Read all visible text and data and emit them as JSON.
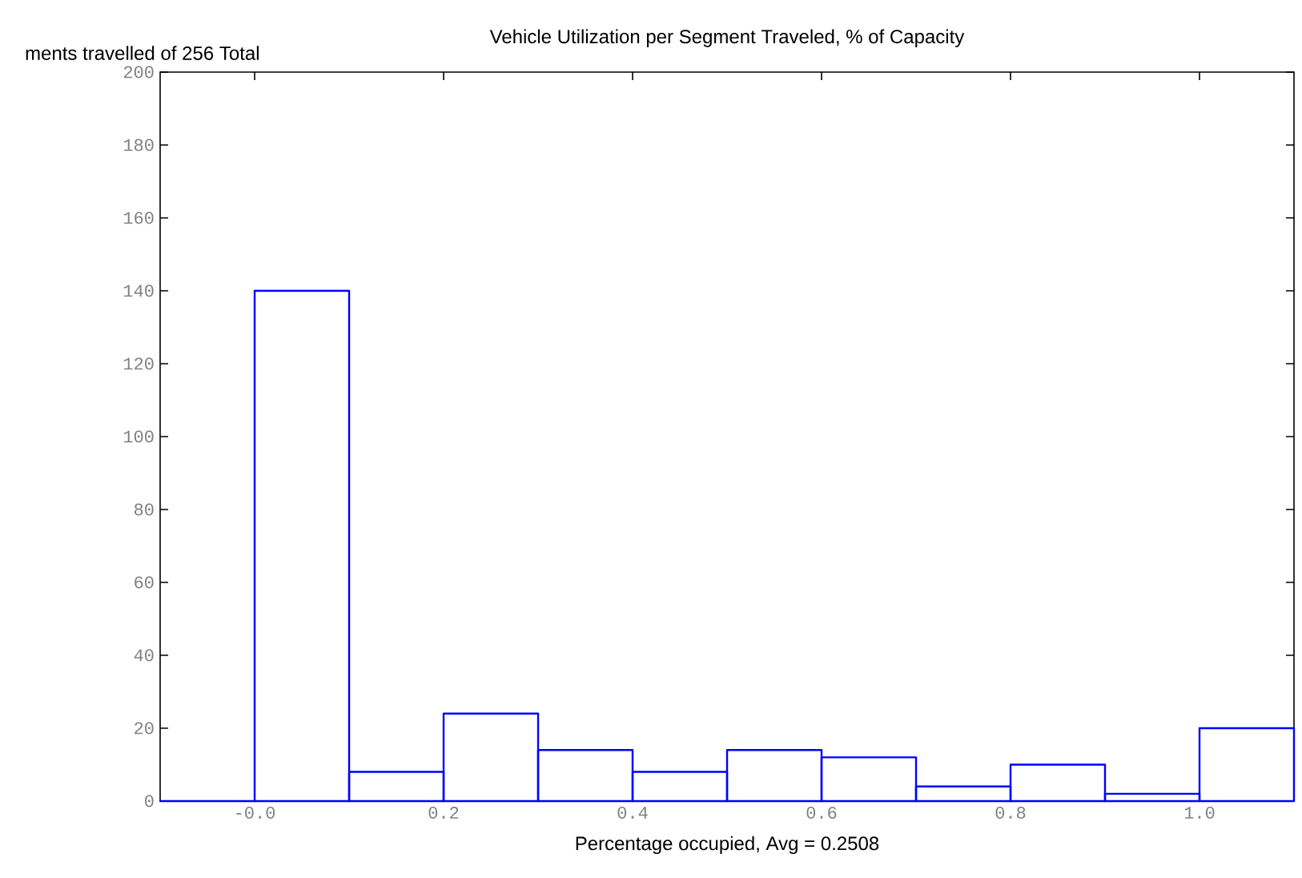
{
  "chart_data": {
    "type": "histogram",
    "title": "Vehicle Utilization per Segment Traveled, % of Capacity",
    "xlabel": "Percentage occupied, Avg = 0.2508",
    "ylabel": "ments travelled of 256 Total",
    "bins": [
      -0.1,
      0.0,
      0.1,
      0.2,
      0.3,
      0.4,
      0.5,
      0.6,
      0.7,
      0.8,
      0.9,
      1.0,
      1.1
    ],
    "values": [
      0,
      140,
      8,
      24,
      14,
      8,
      14,
      12,
      4,
      10,
      2,
      20
    ],
    "color": "#0000ff",
    "xlim": [
      -0.1,
      1.1
    ],
    "xticks": [
      {
        "value": 0,
        "label": "-0.0"
      },
      0.2,
      0.4,
      0.6,
      0.8,
      {
        "value": 1.0,
        "label": "1.0"
      }
    ],
    "ylim": [
      0,
      200
    ],
    "yticks": [
      0,
      20,
      40,
      60,
      80,
      100,
      120,
      140,
      160,
      180,
      200
    ]
  }
}
